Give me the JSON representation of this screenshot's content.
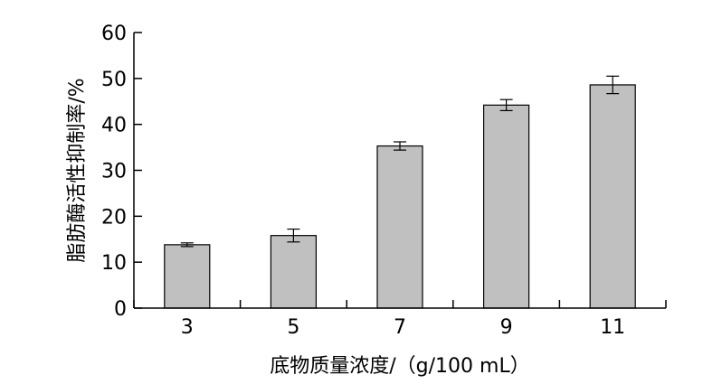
{
  "chart_data": {
    "type": "bar",
    "categories": [
      "3",
      "5",
      "7",
      "9",
      "11"
    ],
    "values": [
      13.8,
      15.8,
      35.3,
      44.2,
      48.6
    ],
    "errors": [
      0.4,
      1.4,
      0.9,
      1.2,
      1.9
    ],
    "xlabel": "底物质量浓度/（g/100 mL）",
    "ylabel": "脂肪酶活性抑制率/%",
    "ylim": [
      0,
      60
    ],
    "yticks": [
      0,
      10,
      20,
      30,
      40,
      50,
      60
    ],
    "grid": false,
    "bar_color": "#c0c0c0"
  }
}
